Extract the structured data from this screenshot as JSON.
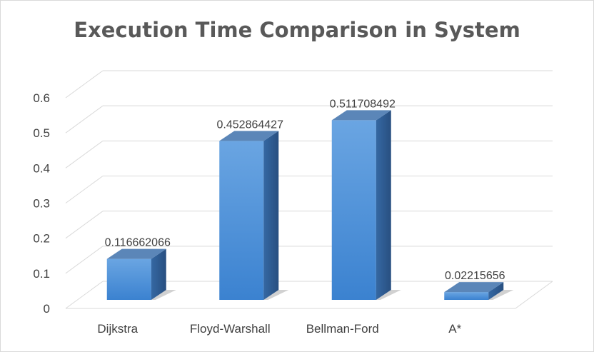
{
  "chart_data": {
    "type": "bar",
    "title": "Execution Time Comparison in System",
    "xlabel": "",
    "ylabel": "",
    "categories": [
      "Dijkstra",
      "Floyd-Warshall",
      "Bellman-Ford",
      "A*"
    ],
    "values": [
      0.116662066,
      0.452864427,
      0.511708492,
      0.02215656
    ],
    "value_labels": [
      "0.116662066",
      "0.452864427",
      "0.511708492",
      "0.02215656"
    ],
    "ylim": [
      0,
      0.6
    ],
    "yticks": [
      "0",
      "0.1",
      "0.2",
      "0.3",
      "0.4",
      "0.5",
      "0.6"
    ],
    "grid": true,
    "legend": "none",
    "style": "3d-column",
    "colors": {
      "bar_front": "#4a8fd6",
      "bar_side": "#2f5f96",
      "bar_top": "#5b86b8",
      "grid": "#d9d9d9",
      "text": "#404040",
      "title": "#595959"
    }
  }
}
